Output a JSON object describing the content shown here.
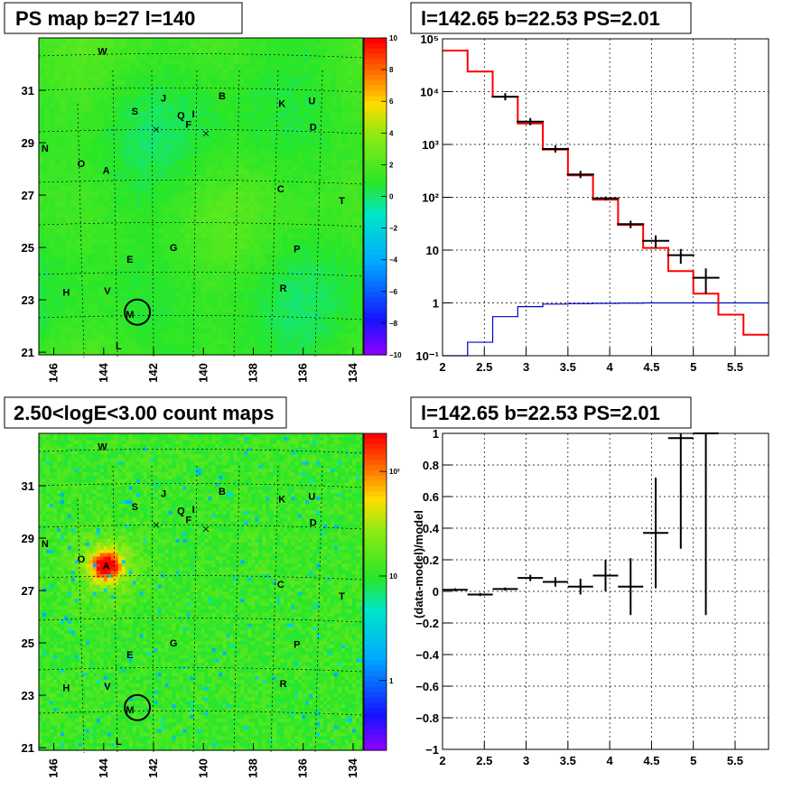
{
  "panels": {
    "ps_map": {
      "title": "PS map b=27 l=140",
      "xticks": [
        "146",
        "144",
        "142",
        "140",
        "138",
        "136",
        "134"
      ],
      "yticks": [
        "31",
        "29",
        "27",
        "25",
        "23",
        "21"
      ],
      "colorbar_ticks": [
        "10",
        "8",
        "6",
        "4",
        "2",
        "0",
        "−2",
        "−4",
        "−6",
        "−8",
        "−10"
      ]
    },
    "count_map": {
      "title": "2.50<logE<3.00 count maps",
      "xticks": [
        "146",
        "144",
        "142",
        "140",
        "138",
        "136",
        "134"
      ],
      "yticks": [
        "31",
        "29",
        "27",
        "25",
        "23",
        "21"
      ],
      "colorbar_ticks": [
        "10²",
        "10",
        "1"
      ]
    },
    "spectrum": {
      "title": "l=142.65 b=22.53 PS=2.01",
      "ytick_labels": [
        "10⁵",
        "10⁴",
        "10³",
        "10²",
        "10",
        "1",
        "10⁻¹"
      ],
      "xtick_labels": [
        "2",
        "2.5",
        "3",
        "3.5",
        "4",
        "4.5",
        "5",
        "5.5"
      ]
    },
    "residual": {
      "title": "l=142.65 b=22.53 PS=2.01",
      "ylabel": "(data-model)/model",
      "ytick_labels": [
        "1",
        "0.8",
        "0.6",
        "0.4",
        "0.2",
        "0",
        "−0.2",
        "−0.4",
        "−0.6",
        "−0.8",
        "−1"
      ],
      "xtick_labels": [
        "2",
        "2.5",
        "3",
        "3.5",
        "4",
        "4.5",
        "5",
        "5.5"
      ]
    }
  },
  "sources": [
    {
      "label": "W",
      "l": 144.05,
      "b": 32.5
    },
    {
      "label": "B",
      "l": 139.25,
      "b": 30.8
    },
    {
      "label": "J",
      "l": 141.6,
      "b": 30.7
    },
    {
      "label": "K",
      "l": 136.85,
      "b": 30.5
    },
    {
      "label": "U",
      "l": 135.65,
      "b": 30.6
    },
    {
      "label": "S",
      "l": 142.75,
      "b": 30.2
    },
    {
      "label": "Q",
      "l": 140.9,
      "b": 30.05
    },
    {
      "label": "I",
      "l": 140.4,
      "b": 30.1
    },
    {
      "label": "F",
      "l": 140.6,
      "b": 29.7
    },
    {
      "label": "D",
      "l": 135.6,
      "b": 29.6
    },
    {
      "label": "N",
      "l": 146.35,
      "b": 28.8
    },
    {
      "label": "O",
      "l": 144.9,
      "b": 28.2
    },
    {
      "label": "A",
      "l": 143.9,
      "b": 27.95
    },
    {
      "label": "C",
      "l": 136.9,
      "b": 27.25
    },
    {
      "label": "T",
      "l": 134.45,
      "b": 26.8
    },
    {
      "label": "G",
      "l": 141.2,
      "b": 25.0
    },
    {
      "label": "P",
      "l": 136.25,
      "b": 24.95
    },
    {
      "label": "E",
      "l": 142.95,
      "b": 24.55
    },
    {
      "label": "H",
      "l": 145.5,
      "b": 23.3
    },
    {
      "label": "V",
      "l": 143.85,
      "b": 23.35
    },
    {
      "label": "R",
      "l": 136.8,
      "b": 23.45
    },
    {
      "label": "M",
      "l": 142.95,
      "b": 22.45
    },
    {
      "label": "L",
      "l": 143.4,
      "b": 21.25
    }
  ],
  "marked_position": {
    "l": 142.65,
    "b": 22.53
  },
  "chart_data": [
    {
      "type": "heatmap",
      "title": "PS map b=27 l=140",
      "xlim": [
        146.6,
        133.6
      ],
      "ylim": [
        20.9,
        33.0
      ],
      "zlim": [
        -10,
        10
      ],
      "description_values": "mostly 0 to 2 (green) with faint structure"
    },
    {
      "type": "heatmap",
      "title": "2.50<logE<3.00 count maps",
      "xlim": [
        146.6,
        133.6
      ],
      "ylim": [
        20.9,
        33.0
      ],
      "color_scale": "log",
      "zlim": [
        0.3,
        300
      ],
      "background_counts": 4,
      "bright_source": {
        "label": "A",
        "l": 143.9,
        "b": 27.95,
        "peak_counts": 150
      }
    },
    {
      "type": "line",
      "title": "l=142.65 b=22.53 PS=2.01",
      "xlim": [
        2,
        5.9
      ],
      "ylim": [
        0.1,
        100000
      ],
      "yscale": "log",
      "grid": true,
      "series": [
        {
          "color": "#ff0000",
          "values": [
            [
              2.0,
              2.3,
              60000
            ],
            [
              2.3,
              2.6,
              24000
            ],
            [
              2.6,
              2.9,
              8000
            ],
            [
              2.9,
              3.2,
              2500
            ],
            [
              3.2,
              3.5,
              800
            ],
            [
              3.5,
              3.8,
              260
            ],
            [
              3.8,
              4.1,
              90
            ],
            [
              4.1,
              4.4,
              30
            ],
            [
              4.4,
              4.7,
              11
            ],
            [
              4.7,
              5.0,
              4
            ],
            [
              5.0,
              5.3,
              1.5
            ],
            [
              5.3,
              5.6,
              0.6
            ],
            [
              5.6,
              5.9,
              0.25
            ]
          ]
        },
        {
          "color": "#0000cc",
          "values": [
            [
              2.0,
              2.3,
              0.1
            ],
            [
              2.3,
              2.6,
              0.18
            ],
            [
              2.6,
              2.9,
              0.55
            ],
            [
              2.9,
              3.2,
              0.85
            ],
            [
              3.2,
              3.5,
              0.95
            ],
            [
              3.5,
              3.8,
              0.97
            ],
            [
              3.8,
              4.1,
              0.98
            ],
            [
              4.1,
              4.4,
              0.99
            ],
            [
              4.4,
              4.7,
              1.0
            ],
            [
              4.7,
              5.0,
              1.0
            ],
            [
              5.0,
              5.3,
              1.0
            ],
            [
              5.3,
              5.6,
              1.0
            ],
            [
              5.6,
              5.9,
              1.0
            ]
          ]
        },
        {
          "color": "#000000",
          "points": [
            [
              2.75,
              8000,
              0
            ],
            [
              3.05,
              2700,
              0
            ],
            [
              3.35,
              820,
              0
            ],
            [
              3.65,
              270,
              0
            ],
            [
              3.95,
              95,
              8
            ],
            [
              4.25,
              31,
              5
            ],
            [
              4.55,
              15,
              4
            ],
            [
              4.85,
              8,
              2.5
            ],
            [
              5.15,
              3,
              1.5
            ]
          ]
        }
      ]
    },
    {
      "type": "scatter",
      "title": "l=142.65 b=22.53 PS=2.01",
      "ylabel": "(data-model)/model",
      "xlim": [
        2,
        5.9
      ],
      "ylim": [
        -1,
        1
      ],
      "grid": true,
      "points": [
        [
          2.15,
          0.01,
          0.01
        ],
        [
          2.45,
          -0.02,
          0.01
        ],
        [
          2.75,
          0.015,
          0.01
        ],
        [
          3.05,
          0.085,
          0.02
        ],
        [
          3.35,
          0.06,
          0.03
        ],
        [
          3.65,
          0.03,
          0.05
        ],
        [
          3.95,
          0.1,
          0.1
        ],
        [
          4.25,
          0.03,
          0.18
        ],
        [
          4.55,
          0.37,
          0.35
        ],
        [
          4.85,
          0.97,
          0.7
        ],
        [
          5.15,
          1.0,
          1.15
        ]
      ]
    }
  ]
}
